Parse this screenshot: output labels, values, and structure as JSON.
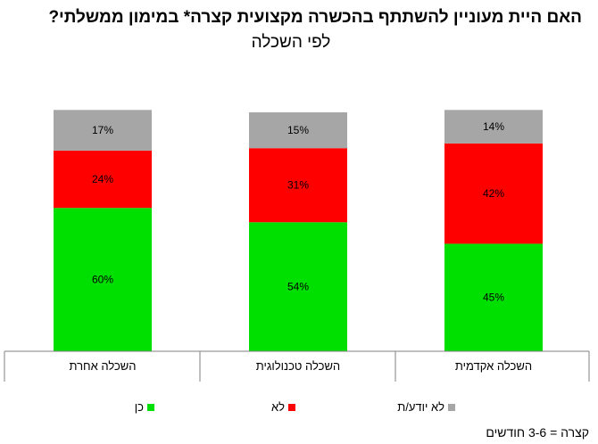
{
  "chart_data": {
    "type": "bar",
    "stacked": true,
    "title": "האם היית מעוניין להשתתף בהכשרה מקצועית קצרה* במימון ממשלתי?",
    "subtitle": "לפי השכלה",
    "categories": [
      "השכלה אחרת",
      "השכלה טכנולוגית",
      "השכלה אקדמית"
    ],
    "series": [
      {
        "name": "כן",
        "color": "#00e000",
        "values": [
          60,
          54,
          45
        ]
      },
      {
        "name": "לא",
        "color": "#ff0000",
        "values": [
          24,
          31,
          42
        ]
      },
      {
        "name": "לא יודע/ת",
        "color": "#a6a6a6",
        "values": [
          17,
          15,
          14
        ]
      }
    ],
    "value_suffix": "%",
    "ylim": [
      0,
      100
    ],
    "grid": false,
    "legend_position": "bottom"
  },
  "footnote": "קצרה = 3-6 חודשים"
}
